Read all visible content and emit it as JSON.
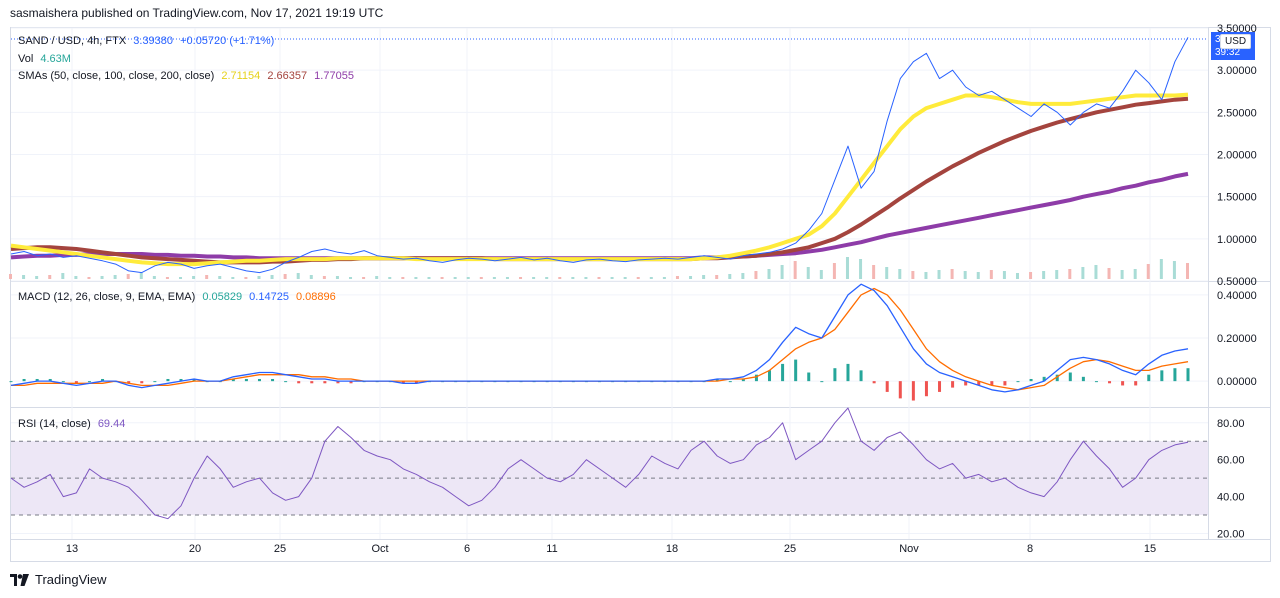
{
  "header": {
    "publisher": "sasmaishera published on TradingView.com, Nov 17, 2021 19:19 UTC"
  },
  "main": {
    "symbol": "SAND / USD, 4h, FTX",
    "price": "3.39380",
    "change": "+0.05720 (+1.71%)",
    "vol_label": "Vol",
    "vol_value": "4.63M",
    "sma_label": "SMAs (50, close, 100, close, 200, close)",
    "sma50": "2.71154",
    "sma100": "2.66357",
    "sma200": "1.77055",
    "currency_button": "USD",
    "price_tag_top": "3.",
    "price_tag_bottom": "39:32"
  },
  "macd": {
    "label": "MACD (12, 26, close, 9, EMA, EMA)",
    "hist": "0.05829",
    "macd": "0.14725",
    "signal": "0.08896"
  },
  "rsi": {
    "label": "RSI (14, close)",
    "value": "69.44"
  },
  "footer": {
    "brand": "TradingView"
  },
  "colors": {
    "price": "#2962ff",
    "sma50": "#ffeb3b",
    "sma100": "#a4443e",
    "sma200": "#8e3ca8",
    "macd": "#2962ff",
    "signal": "#ff6d00",
    "hist_up": "#26a69a",
    "hist_down": "#ef5350",
    "rsi": "#7e57c2",
    "rsi_band": "#ede7f6"
  },
  "chart_data": [
    {
      "type": "line",
      "title": "SAND / USD, 4h, FTX",
      "x_ticks": [
        "13",
        "20",
        "25",
        "Oct",
        "6",
        "11",
        "18",
        "25",
        "Nov",
        "8",
        "15"
      ],
      "y_ticks": [
        "0.50000",
        "1.00000",
        "1.50000",
        "2.00000",
        "2.50000",
        "3.00000",
        "3.50000"
      ],
      "ylim": [
        0.5,
        3.5
      ],
      "series": [
        {
          "name": "SAND / USD",
          "values": [
            0.82,
            0.85,
            0.8,
            0.82,
            0.78,
            0.8,
            0.77,
            0.74,
            0.7,
            0.62,
            0.6,
            0.68,
            0.72,
            0.7,
            0.65,
            0.68,
            0.7,
            0.66,
            0.62,
            0.6,
            0.64,
            0.72,
            0.78,
            0.85,
            0.88,
            0.84,
            0.82,
            0.86,
            0.8,
            0.78,
            0.76,
            0.77,
            0.74,
            0.72,
            0.75,
            0.77,
            0.76,
            0.74,
            0.76,
            0.78,
            0.75,
            0.77,
            0.74,
            0.72,
            0.75,
            0.76,
            0.74,
            0.73,
            0.75,
            0.76,
            0.77,
            0.76,
            0.78,
            0.8,
            0.78,
            0.76,
            0.8,
            0.82,
            0.84,
            0.88,
            0.95,
            1.1,
            1.3,
            1.7,
            2.1,
            1.6,
            1.8,
            2.4,
            2.9,
            3.1,
            3.2,
            2.9,
            3.0,
            2.8,
            2.7,
            2.75,
            2.65,
            2.55,
            2.45,
            2.6,
            2.5,
            2.35,
            2.5,
            2.6,
            2.55,
            2.75,
            3.0,
            2.85,
            2.65,
            3.1,
            3.39
          ]
        },
        {
          "name": "SMA 50",
          "values": [
            0.92,
            0.9,
            0.88,
            0.86,
            0.84,
            0.82,
            0.8,
            0.78,
            0.76,
            0.74,
            0.72,
            0.71,
            0.7,
            0.7,
            0.7,
            0.71,
            0.72,
            0.73,
            0.74,
            0.74,
            0.75,
            0.76,
            0.76,
            0.76,
            0.76,
            0.77,
            0.77,
            0.77,
            0.77,
            0.77,
            0.77,
            0.76,
            0.76,
            0.76,
            0.76,
            0.76,
            0.76,
            0.76,
            0.76,
            0.76,
            0.76,
            0.76,
            0.76,
            0.76,
            0.76,
            0.76,
            0.76,
            0.76,
            0.76,
            0.76,
            0.76,
            0.76,
            0.76,
            0.77,
            0.78,
            0.8,
            0.83,
            0.86,
            0.9,
            0.95,
            1.0,
            1.05,
            1.15,
            1.3,
            1.5,
            1.7,
            1.9,
            2.1,
            2.3,
            2.45,
            2.55,
            2.6,
            2.65,
            2.7,
            2.7,
            2.68,
            2.65,
            2.62,
            2.6,
            2.6,
            2.6,
            2.6,
            2.62,
            2.64,
            2.66,
            2.68,
            2.7,
            2.7,
            2.7,
            2.7,
            2.71
          ]
        },
        {
          "name": "SMA 100",
          "values": [
            0.88,
            0.89,
            0.9,
            0.9,
            0.89,
            0.88,
            0.86,
            0.84,
            0.82,
            0.8,
            0.78,
            0.77,
            0.76,
            0.75,
            0.74,
            0.73,
            0.72,
            0.72,
            0.72,
            0.72,
            0.73,
            0.73,
            0.74,
            0.75,
            0.75,
            0.76,
            0.76,
            0.77,
            0.77,
            0.77,
            0.77,
            0.77,
            0.77,
            0.77,
            0.77,
            0.77,
            0.77,
            0.76,
            0.76,
            0.76,
            0.76,
            0.76,
            0.76,
            0.76,
            0.76,
            0.76,
            0.76,
            0.76,
            0.76,
            0.76,
            0.76,
            0.76,
            0.76,
            0.77,
            0.77,
            0.78,
            0.79,
            0.8,
            0.82,
            0.84,
            0.87,
            0.9,
            0.95,
            1.0,
            1.08,
            1.17,
            1.27,
            1.37,
            1.48,
            1.58,
            1.68,
            1.77,
            1.86,
            1.94,
            2.02,
            2.09,
            2.16,
            2.22,
            2.28,
            2.33,
            2.38,
            2.42,
            2.46,
            2.5,
            2.53,
            2.56,
            2.59,
            2.61,
            2.63,
            2.65,
            2.66
          ]
        },
        {
          "name": "SMA 200",
          "values": [
            0.78,
            0.79,
            0.8,
            0.8,
            0.81,
            0.81,
            0.82,
            0.82,
            0.82,
            0.82,
            0.82,
            0.81,
            0.81,
            0.8,
            0.8,
            0.79,
            0.79,
            0.78,
            0.78,
            0.77,
            0.77,
            0.77,
            0.77,
            0.77,
            0.77,
            0.77,
            0.77,
            0.77,
            0.77,
            0.77,
            0.77,
            0.77,
            0.77,
            0.77,
            0.77,
            0.77,
            0.77,
            0.77,
            0.77,
            0.77,
            0.77,
            0.77,
            0.77,
            0.77,
            0.77,
            0.77,
            0.77,
            0.77,
            0.77,
            0.77,
            0.77,
            0.77,
            0.77,
            0.78,
            0.78,
            0.79,
            0.79,
            0.8,
            0.81,
            0.82,
            0.83,
            0.85,
            0.87,
            0.9,
            0.93,
            0.96,
            1.0,
            1.04,
            1.07,
            1.1,
            1.13,
            1.16,
            1.19,
            1.22,
            1.25,
            1.28,
            1.31,
            1.34,
            1.37,
            1.4,
            1.43,
            1.46,
            1.5,
            1.53,
            1.56,
            1.6,
            1.63,
            1.67,
            1.7,
            1.74,
            1.77
          ]
        }
      ]
    },
    {
      "type": "line",
      "title": "MACD (12, 26, close, 9, EMA, EMA)",
      "y_ticks": [
        "0.00000",
        "0.20000",
        "0.40000"
      ],
      "ylim": [
        -0.12,
        0.46
      ],
      "series": [
        {
          "name": "MACD",
          "values": [
            -0.02,
            -0.01,
            0,
            0,
            -0.01,
            -0.02,
            -0.01,
            0,
            0,
            -0.02,
            -0.03,
            -0.02,
            -0.01,
            0,
            0.01,
            0,
            0,
            0.02,
            0.03,
            0.04,
            0.04,
            0.03,
            0.02,
            0.01,
            0.01,
            0,
            0,
            0,
            0,
            0,
            -0.01,
            -0.01,
            0,
            0,
            0,
            0,
            0,
            0,
            0,
            0,
            0,
            0,
            0,
            0,
            0,
            0,
            0,
            0,
            0,
            0,
            0,
            0,
            0,
            0,
            0.01,
            0.01,
            0.02,
            0.05,
            0.1,
            0.18,
            0.25,
            0.22,
            0.2,
            0.3,
            0.4,
            0.45,
            0.42,
            0.35,
            0.25,
            0.15,
            0.08,
            0.04,
            0.02,
            0,
            -0.02,
            -0.04,
            -0.05,
            -0.04,
            -0.02,
            0,
            0.05,
            0.1,
            0.11,
            0.1,
            0.08,
            0.05,
            0.03,
            0.08,
            0.12,
            0.14,
            0.15
          ]
        },
        {
          "name": "Signal",
          "values": [
            -0.02,
            -0.02,
            -0.01,
            -0.01,
            -0.01,
            -0.01,
            -0.01,
            -0.01,
            0,
            -0.01,
            -0.02,
            -0.02,
            -0.02,
            -0.01,
            0,
            0,
            0,
            0.01,
            0.02,
            0.03,
            0.03,
            0.03,
            0.03,
            0.02,
            0.02,
            0.01,
            0.01,
            0,
            0,
            0,
            0,
            0,
            0,
            0,
            0,
            0,
            0,
            0,
            0,
            0,
            0,
            0,
            0,
            0,
            0,
            0,
            0,
            0,
            0,
            0,
            0,
            0,
            0,
            0,
            0,
            0.01,
            0.01,
            0.02,
            0.05,
            0.1,
            0.15,
            0.18,
            0.2,
            0.24,
            0.32,
            0.4,
            0.43,
            0.4,
            0.33,
            0.24,
            0.15,
            0.09,
            0.05,
            0.02,
            0,
            -0.02,
            -0.03,
            -0.04,
            -0.03,
            -0.02,
            0.02,
            0.06,
            0.09,
            0.1,
            0.09,
            0.07,
            0.05,
            0.05,
            0.07,
            0.08,
            0.09
          ]
        }
      ]
    },
    {
      "type": "line",
      "title": "RSI (14, close)",
      "y_ticks": [
        "20.00",
        "40.00",
        "60.00",
        "80.00"
      ],
      "ylim": [
        17,
        88
      ],
      "series": [
        {
          "name": "RSI",
          "values": [
            50,
            45,
            48,
            52,
            40,
            42,
            55,
            50,
            48,
            45,
            38,
            30,
            28,
            35,
            50,
            62,
            55,
            45,
            48,
            50,
            42,
            38,
            40,
            50,
            70,
            78,
            72,
            65,
            62,
            60,
            55,
            52,
            48,
            45,
            40,
            35,
            38,
            45,
            55,
            60,
            55,
            50,
            48,
            52,
            60,
            55,
            50,
            45,
            52,
            62,
            58,
            55,
            65,
            70,
            62,
            58,
            60,
            68,
            72,
            80,
            60,
            65,
            70,
            80,
            88,
            70,
            65,
            72,
            75,
            68,
            60,
            55,
            58,
            50,
            52,
            48,
            50,
            45,
            42,
            40,
            48,
            60,
            70,
            62,
            55,
            45,
            50,
            60,
            65,
            68,
            69.44
          ]
        }
      ]
    }
  ]
}
